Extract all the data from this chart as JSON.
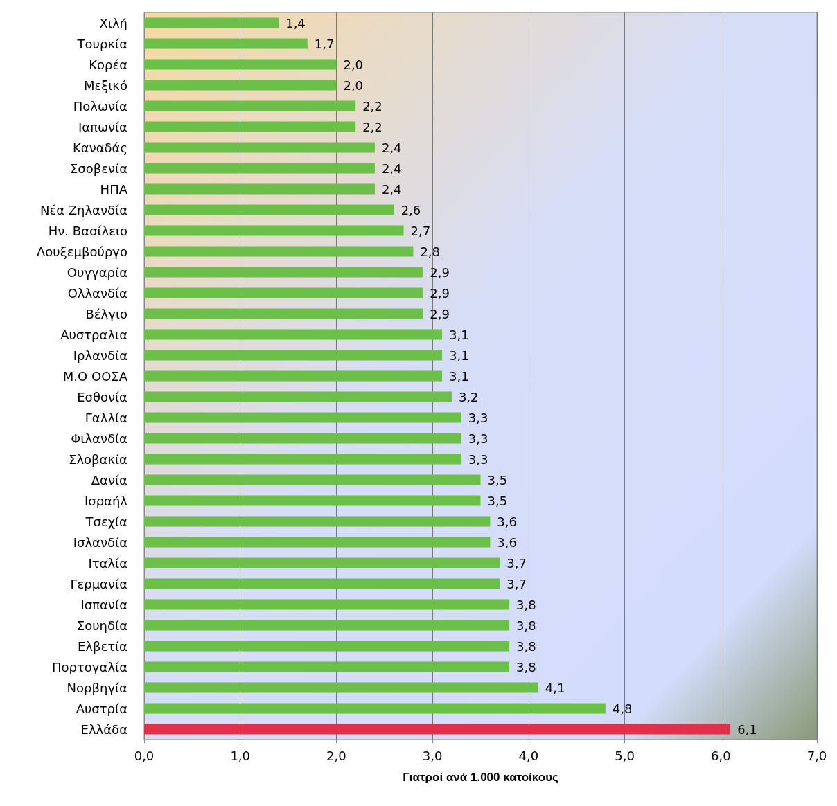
{
  "chart_data": {
    "type": "bar",
    "orientation": "horizontal",
    "xlabel": "Γιατροί ανά 1.000 κατοίκους",
    "categories": [
      "Χιλή",
      "Τουρκία",
      "Κορέα",
      "Μεξικό",
      "Πολωνία",
      "Ιαπωνία",
      "Καναδάς",
      "Σσοβενία",
      "ΗΠΑ",
      "Νέα Ζηλανδία",
      "Ην. Βασίλειο",
      "Λουξεμβούργο",
      "Ουγγαρία",
      "Ολλανδία",
      "Βέλγιο",
      "Αυστραλια",
      "Ιρλανδία",
      "Μ.Ο ΟΟΣΑ",
      "Εσθονία",
      "Γαλλία",
      "Φιλανδία",
      "Σλοβακία",
      "Δανία",
      "Ισραήλ",
      "Τσεχία",
      "Ισλανδία",
      "Ιταλία",
      "Γερμανία",
      "Ισπανία",
      "Σουηδία",
      "Ελβετία",
      "Πορτογαλία",
      "Νορβηγία",
      "Αυστρία",
      "Ελλάδα"
    ],
    "values": [
      1.4,
      1.7,
      2.0,
      2.0,
      2.2,
      2.2,
      2.4,
      2.4,
      2.4,
      2.6,
      2.7,
      2.8,
      2.9,
      2.9,
      2.9,
      3.1,
      3.1,
      3.1,
      3.2,
      3.3,
      3.3,
      3.3,
      3.5,
      3.5,
      3.6,
      3.6,
      3.7,
      3.7,
      3.8,
      3.8,
      3.8,
      3.8,
      4.1,
      4.8,
      6.1
    ],
    "value_labels": [
      "1,4",
      "1,7",
      "2,0",
      "2,0",
      "2,2",
      "2,2",
      "2,4",
      "2,4",
      "2,4",
      "2,6",
      "2,7",
      "2,8",
      "2,9",
      "2,9",
      "2,9",
      "3,1",
      "3,1",
      "3,1",
      "3,2",
      "3,3",
      "3,3",
      "3,3",
      "3,5",
      "3,5",
      "3,6",
      "3,6",
      "3,7",
      "3,7",
      "3,8",
      "3,8",
      "3,8",
      "3,8",
      "4,1",
      "4,8",
      "6,1"
    ],
    "colors": [
      "#6cc04a",
      "#6cc04a",
      "#6cc04a",
      "#6cc04a",
      "#6cc04a",
      "#6cc04a",
      "#6cc04a",
      "#6cc04a",
      "#6cc04a",
      "#6cc04a",
      "#6cc04a",
      "#6cc04a",
      "#6cc04a",
      "#6cc04a",
      "#6cc04a",
      "#6cc04a",
      "#6cc04a",
      "#6cc04a",
      "#6cc04a",
      "#6cc04a",
      "#6cc04a",
      "#6cc04a",
      "#6cc04a",
      "#6cc04a",
      "#6cc04a",
      "#6cc04a",
      "#6cc04a",
      "#6cc04a",
      "#6cc04a",
      "#6cc04a",
      "#6cc04a",
      "#6cc04a",
      "#6cc04a",
      "#6cc04a",
      "#e0304a"
    ],
    "xlim": [
      0,
      7
    ],
    "xticks": [
      {
        "value": 0,
        "label": "0,0"
      },
      {
        "value": 1,
        "label": "1,0"
      },
      {
        "value": 2,
        "label": "2,0"
      },
      {
        "value": 3,
        "label": "3,0"
      },
      {
        "value": 4,
        "label": "4,0"
      },
      {
        "value": 5,
        "label": "5,0"
      },
      {
        "value": 6,
        "label": "6,0"
      },
      {
        "value": 7,
        "label": "7,0"
      }
    ],
    "grid": "x"
  }
}
